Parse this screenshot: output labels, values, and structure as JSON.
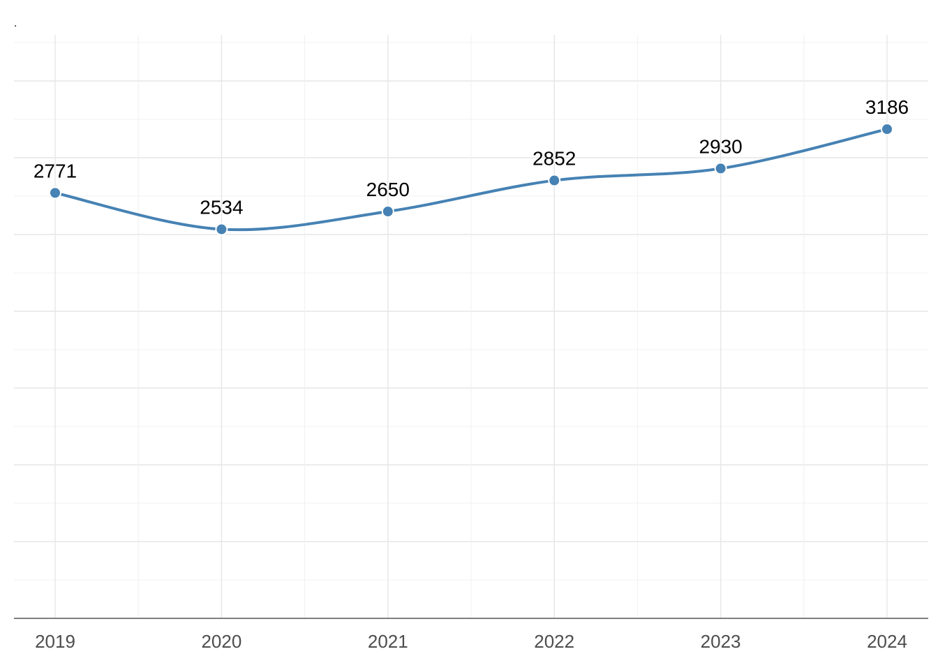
{
  "chart_data": {
    "type": "line",
    "title": ".",
    "xlabel": "",
    "ylabel": "",
    "categories": [
      "2019",
      "2020",
      "2021",
      "2022",
      "2023",
      "2024"
    ],
    "series": [
      {
        "values": [
          2771,
          2534,
          2650,
          2852,
          2930,
          3186
        ]
      }
    ],
    "ylim": [
      0,
      3800
    ],
    "grid": true,
    "legend": "none",
    "line_color": "#4682b4"
  }
}
